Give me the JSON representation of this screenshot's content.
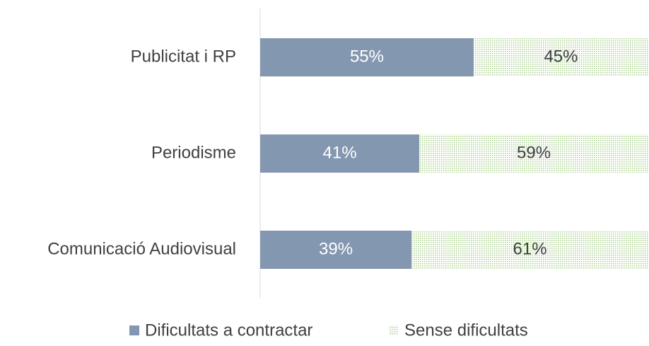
{
  "chart_data": {
    "type": "bar",
    "orientation": "horizontal",
    "stacked": true,
    "categories": [
      "Publicitat i RP",
      "Periodisme",
      "Comunicació Audiovisual"
    ],
    "series": [
      {
        "name": "Dificultats a contractar",
        "color": "#8497b0",
        "values": [
          55,
          41,
          39
        ],
        "value_labels": [
          "55%",
          "41%",
          "39%"
        ]
      },
      {
        "name": "Sense dificultats",
        "color": "#a9d18e",
        "pattern": "dots",
        "values": [
          45,
          59,
          61
        ],
        "value_labels": [
          "45%",
          "59%",
          "61%"
        ]
      }
    ],
    "legend": "bottom"
  }
}
